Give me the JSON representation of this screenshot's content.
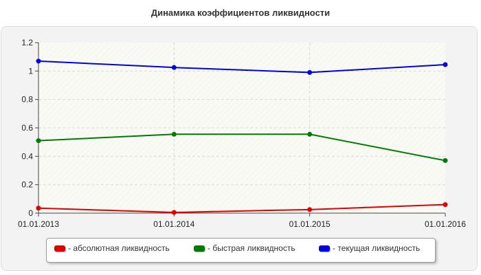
{
  "chart_data": {
    "type": "line",
    "title": "Динамика коэффициентов ликвидности",
    "categories": [
      "01.01.2013",
      "01.01.2014",
      "01.01.2015",
      "01.01.2016"
    ],
    "ylim": [
      0,
      1.2
    ],
    "yticks": [
      "0",
      "0.2",
      "0.4",
      "0.6",
      "0.8",
      "1",
      "1.2"
    ],
    "grid": true,
    "legend_position": "bottom",
    "series": [
      {
        "name": "- абсолютная ликвидность",
        "color": "#e00000",
        "values": [
          0.035,
          0.005,
          0.025,
          0.06
        ]
      },
      {
        "name": "- быстрая ликвидность",
        "color": "#007a00",
        "values": [
          0.51,
          0.555,
          0.555,
          0.37
        ]
      },
      {
        "name": "- текущая ликвидность",
        "color": "#0000e0",
        "values": [
          1.07,
          1.025,
          0.99,
          1.045
        ]
      }
    ]
  }
}
